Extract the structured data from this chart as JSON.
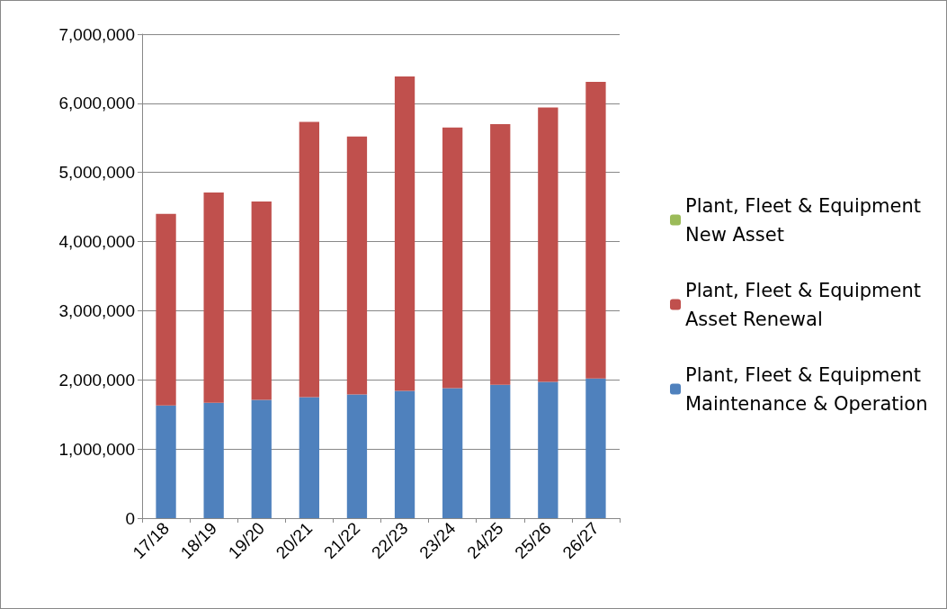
{
  "chart_data": {
    "type": "bar",
    "stacked": true,
    "categories": [
      "17/18",
      "18/19",
      "19/20",
      "20/21",
      "21/22",
      "22/23",
      "23/24",
      "24/25",
      "25/26",
      "26/27"
    ],
    "series": [
      {
        "name": "Plant, Fleet & Equipment Maintenance & Operation",
        "color": "#4f81bd",
        "values": [
          1630000,
          1670000,
          1710000,
          1750000,
          1790000,
          1840000,
          1880000,
          1930000,
          1970000,
          2020000
        ]
      },
      {
        "name": "Plant, Fleet & Equipment Asset Renewal",
        "color": "#c0504d",
        "values": [
          2770000,
          3040000,
          2870000,
          3980000,
          3730000,
          4550000,
          3770000,
          3770000,
          3970000,
          4290000
        ]
      },
      {
        "name": "Plant, Fleet & Equipment New Asset",
        "color": "#9bbb59",
        "values": [
          0,
          0,
          0,
          0,
          0,
          0,
          0,
          0,
          0,
          0
        ]
      }
    ],
    "ylim": [
      0,
      7000000
    ],
    "yticks": [
      0,
      {
        "value": 1000000,
        "label": "1,000,000"
      },
      {
        "value": 2000000,
        "label": "2,000,000"
      },
      {
        "value": 3000000,
        "label": "3,000,000"
      },
      {
        "value": 4000000,
        "label": "4,000,000"
      },
      {
        "value": 5000000,
        "label": "5,000,000"
      },
      {
        "value": 6000000,
        "label": "6,000,000"
      },
      {
        "value": 7000000,
        "label": "7,000,000"
      }
    ],
    "grid": "y",
    "legend": "right"
  }
}
